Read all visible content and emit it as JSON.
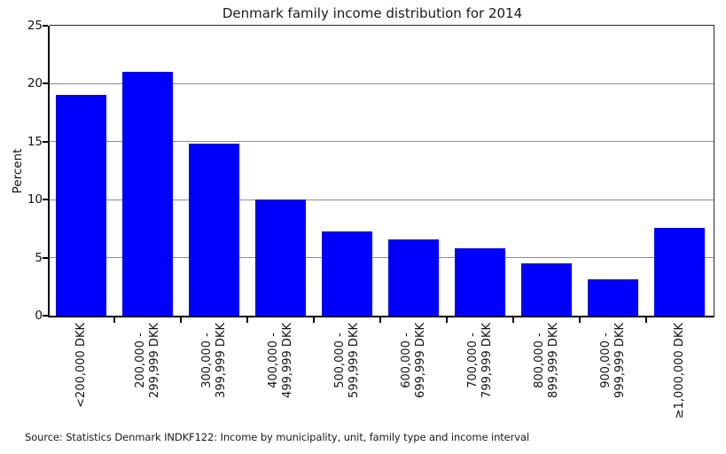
{
  "chart_data": {
    "type": "bar",
    "title": "Denmark family income distribution for 2014",
    "ylabel": "Percent",
    "xlabel": "",
    "categories": [
      "<200,000 DKK",
      "200,000 -\n299,999 DKK",
      "300,000 -\n399,999 DKK",
      "400,000 -\n499,999 DKK",
      "500,000 -\n599,999 DKK",
      "600,000 -\n699,999 DKK",
      "700,000 -\n799,999 DKK",
      "800,000 -\n899,999 DKK",
      "900,000 -\n999,999 DKK",
      "≥1,000,000 DKK"
    ],
    "values": [
      19.0,
      21.0,
      14.8,
      10.0,
      7.3,
      6.6,
      5.8,
      4.5,
      3.1,
      7.6
    ],
    "ylim": [
      0,
      25
    ],
    "yticks": [
      0,
      5,
      10,
      15,
      20,
      25
    ],
    "grid": true,
    "legend_position": "none",
    "bar_color": "#0000ff",
    "grid_color": "#8c8c8c",
    "source_note": "Source: Statistics Denmark INDKF122: Income by municipality, unit, family type and income interval"
  }
}
